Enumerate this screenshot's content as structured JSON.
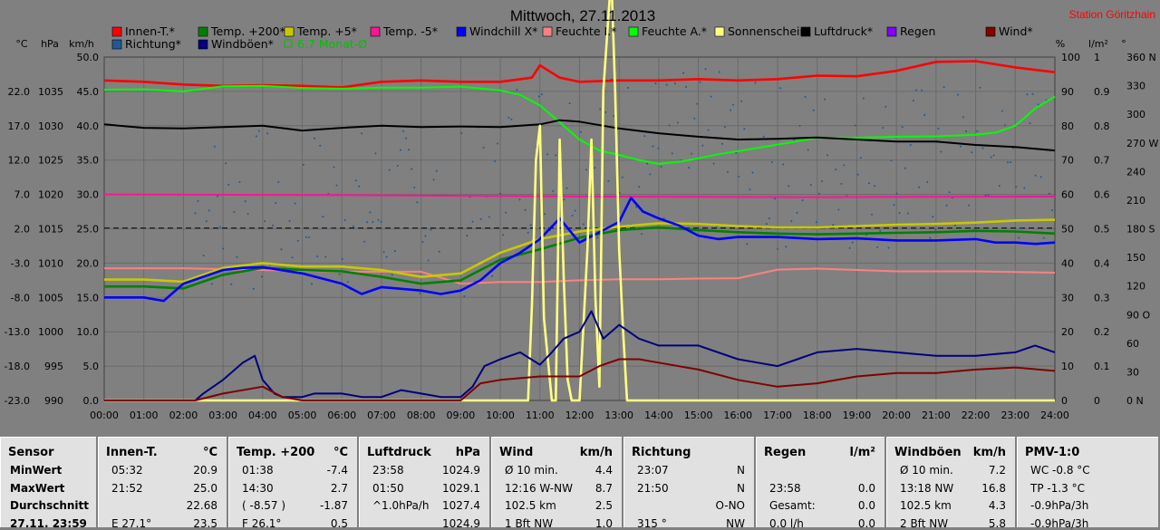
{
  "header": {
    "title": "Mittwoch, 27.11.2013",
    "station": "Station Göritzhain"
  },
  "legend": [
    {
      "label": "Innen-T.*",
      "color": "#ff0000"
    },
    {
      "label": "Temp. +200*",
      "color": "#008000"
    },
    {
      "label": "Temp. +5*",
      "color": "#c8c800"
    },
    {
      "label": "Temp. -5*",
      "color": "#ff1493"
    },
    {
      "label": "Windchill X*",
      "color": "#0000ff"
    },
    {
      "label": "Feuchte I.*",
      "color": "#ff8080"
    },
    {
      "label": "Feuchte A.*",
      "color": "#00ff00"
    },
    {
      "label": "Sonnenschein",
      "color": "#ffff80"
    },
    {
      "label": "Luftdruck*",
      "color": "#000000"
    },
    {
      "label": "Regen",
      "color": "#8000ff"
    },
    {
      "label": "Wind*",
      "color": "#800000"
    },
    {
      "label": "Richtung*",
      "color": "#1e5a96"
    },
    {
      "label": "Windböen*",
      "color": "#000080"
    },
    {
      "label": "6.7 Monat-Ø",
      "color": "#00c000"
    }
  ],
  "axes": {
    "units_left": [
      "°C",
      "hPa",
      "km/h"
    ],
    "units_right": [
      "%",
      "l/m²",
      "°"
    ],
    "temp_ticks": [
      "22.0",
      "17.0",
      "12.0",
      "7.0",
      "2.0",
      "-3.0",
      "-8.0",
      "-13.0",
      "-18.0",
      "-23.0"
    ],
    "hpa_ticks": [
      "1035",
      "1030",
      "1025",
      "1020",
      "1015",
      "1010",
      "1005",
      "1000",
      "995",
      "990"
    ],
    "kmh_ticks": [
      "50.0",
      "45.0",
      "40.0",
      "35.0",
      "30.0",
      "25.0",
      "20.0",
      "15.0",
      "10.0",
      "5.0",
      "0.0"
    ],
    "pct_ticks": [
      "100",
      "90",
      "80",
      "70",
      "60",
      "50",
      "40",
      "30",
      "20",
      "10",
      "0"
    ],
    "rain_ticks": [
      "1",
      "0.9",
      "0.8",
      "0.7",
      "0.6",
      "0.5",
      "0.4",
      "0.3",
      "0.2",
      "0.1",
      "0"
    ],
    "deg_ticks": [
      "360 N",
      "330",
      "300",
      "270 W",
      "240",
      "210",
      "180 S",
      "150",
      "120",
      "90 O",
      "60",
      "30",
      "0 N"
    ],
    "time_ticks": [
      "00:00",
      "01:00",
      "02:00",
      "03:00",
      "04:00",
      "05:00",
      "06:00",
      "07:00",
      "08:00",
      "09:00",
      "10:00",
      "11:00",
      "12:00",
      "13:00",
      "14:00",
      "15:00",
      "16:00",
      "17:00",
      "18:00",
      "19:00",
      "20:00",
      "21:00",
      "22:00",
      "23:00",
      "24:00"
    ]
  },
  "chart_data": {
    "type": "line",
    "title": "Mittwoch, 27.11.2013",
    "x_unit": "hour",
    "xlim": [
      0,
      24
    ],
    "ylim_kmh": [
      0,
      50
    ],
    "grid": true,
    "series": [
      {
        "name": "Innen-T.*",
        "scale": "kmh",
        "color": "#ff0000",
        "x": [
          0,
          1,
          2,
          3,
          4,
          5,
          6,
          7,
          8,
          9,
          10,
          10.8,
          11,
          11.5,
          12,
          13,
          14,
          15,
          16,
          17,
          18,
          19,
          20,
          21,
          22,
          23,
          24
        ],
        "values": [
          46.6,
          46.4,
          46.0,
          45.8,
          45.9,
          45.8,
          45.6,
          46.4,
          46.6,
          46.4,
          46.4,
          47.0,
          48.8,
          47.0,
          46.4,
          46.6,
          46.6,
          46.8,
          46.6,
          46.8,
          47.3,
          47.2,
          48.0,
          49.3,
          49.4,
          48.5,
          47.8
        ]
      },
      {
        "name": "Feuchte A.*",
        "scale": "pct",
        "color": "#00ff00",
        "x": [
          0,
          1,
          2,
          3,
          4,
          5,
          6,
          7,
          8,
          9,
          10,
          10.5,
          11,
          11.5,
          12,
          12.5,
          13,
          13.5,
          14,
          14.5,
          15,
          15.5,
          16,
          17,
          18,
          19,
          20,
          21,
          22,
          22.5,
          23,
          23.5,
          24
        ],
        "values": [
          90.5,
          90.6,
          90,
          91.5,
          91.6,
          91.0,
          90.8,
          91.1,
          91.1,
          91.4,
          90.3,
          89.0,
          85.9,
          81.0,
          76.0,
          72.8,
          71.5,
          70.0,
          68.9,
          69.5,
          70.5,
          71.7,
          72.6,
          74.5,
          76.5,
          76.5,
          76.8,
          76.9,
          77.4,
          78.0,
          80.0,
          85.0,
          88.5
        ]
      },
      {
        "name": "Luftdruck*",
        "scale": "kmh",
        "color": "#000000",
        "x": [
          0,
          1,
          2,
          3,
          4,
          5,
          6,
          7,
          8,
          9,
          10,
          11,
          11.5,
          12,
          13,
          14,
          15,
          16,
          17,
          18,
          19,
          20,
          21,
          22,
          23,
          24
        ],
        "values": [
          40.2,
          39.7,
          39.6,
          39.8,
          40.0,
          39.3,
          39.7,
          40.0,
          39.8,
          39.9,
          39.8,
          40.2,
          40.8,
          40.6,
          39.6,
          38.9,
          38.4,
          38.0,
          38.1,
          38.3,
          38.0,
          37.7,
          37.7,
          37.2,
          36.9,
          36.4
        ]
      },
      {
        "name": "Temp. -5*",
        "scale": "kmh",
        "color": "#ff1493",
        "x": [
          0,
          6,
          12,
          18,
          24
        ],
        "values": [
          30.0,
          29.9,
          29.7,
          29.6,
          29.7
        ]
      },
      {
        "name": "Feuchte I.*",
        "scale": "pct",
        "color": "#ff8080",
        "x": [
          0,
          2,
          4,
          6,
          8,
          9,
          10,
          11,
          12,
          13,
          14,
          15,
          16,
          17,
          18,
          20,
          22,
          24
        ],
        "values": [
          38.5,
          38.5,
          38.0,
          37.5,
          37.5,
          34.0,
          34.5,
          34.5,
          35.0,
          35.3,
          35.3,
          35.5,
          35.6,
          38.1,
          38.4,
          37.6,
          37.6,
          37.2
        ]
      },
      {
        "name": "Temp. +5*",
        "scale": "kmh",
        "color": "#c8c800",
        "x": [
          0,
          1,
          2,
          3,
          4,
          5,
          6,
          7,
          8,
          9,
          10,
          11,
          12,
          13,
          14,
          15,
          16,
          17,
          18,
          19,
          20,
          21,
          22,
          23,
          24
        ],
        "values": [
          17.6,
          17.6,
          17.3,
          19.3,
          20.0,
          19.5,
          19.5,
          19.0,
          18.0,
          18.5,
          21.5,
          23.5,
          24.6,
          25.3,
          25.8,
          25.7,
          25.4,
          25.2,
          25.2,
          25.4,
          25.6,
          25.7,
          25.9,
          26.2,
          26.3
        ]
      },
      {
        "name": "Temp. +200*",
        "scale": "kmh",
        "color": "#008000",
        "x": [
          0,
          1,
          2,
          3,
          4,
          5,
          6,
          7,
          8,
          9,
          10,
          11,
          12,
          13,
          14,
          15,
          16,
          17,
          18,
          19,
          20,
          21,
          22,
          23,
          24
        ],
        "values": [
          16.6,
          16.6,
          16.3,
          18.3,
          19.3,
          19.0,
          18.8,
          18.0,
          17.0,
          17.5,
          20.5,
          22.0,
          23.7,
          24.8,
          25.2,
          24.8,
          24.5,
          24.3,
          24.2,
          24.3,
          24.4,
          24.5,
          24.7,
          24.6,
          24.3
        ]
      },
      {
        "name": "Windchill X*",
        "scale": "kmh",
        "color": "#0000ff",
        "x": [
          0,
          1,
          1.5,
          2,
          3,
          3.5,
          4,
          5,
          6,
          6.5,
          7,
          8,
          8.5,
          9,
          9.5,
          10,
          10.5,
          11,
          11.5,
          12,
          12.5,
          13,
          13.3,
          13.6,
          14,
          14.5,
          15,
          15.5,
          16,
          17,
          18,
          19,
          20,
          21,
          22,
          22.5,
          23,
          23.5,
          24
        ],
        "values": [
          15.0,
          15.0,
          14.5,
          17.0,
          19.0,
          19.3,
          19.4,
          18.5,
          17.0,
          15.5,
          16.5,
          16.0,
          15.5,
          16.0,
          17.5,
          20.0,
          21.5,
          23.5,
          26.5,
          23.0,
          24.5,
          26.0,
          29.5,
          27.5,
          26.5,
          25.5,
          24.0,
          23.5,
          23.8,
          23.8,
          23.5,
          23.6,
          23.3,
          23.3,
          23.5,
          23.0,
          23.0,
          22.8,
          23.0
        ]
      },
      {
        "name": "Sonnenschein",
        "scale": "kmh",
        "color": "#ffff80",
        "x": [
          0,
          10.7,
          10.8,
          10.9,
          11.0,
          11.1,
          11.3,
          11.4,
          11.5,
          11.6,
          11.7,
          11.8,
          12.0,
          12.2,
          12.3,
          12.4,
          12.5,
          12.6,
          12.8,
          12.9,
          13.0,
          13.1,
          13.2,
          13.3,
          13.6,
          24
        ],
        "values": [
          0,
          0,
          14,
          35,
          40,
          12,
          0,
          0,
          38,
          18,
          3,
          0,
          0,
          22,
          38,
          15,
          2,
          45,
          62,
          45,
          22,
          10,
          0,
          0,
          0,
          0
        ]
      },
      {
        "name": "Windböen*",
        "scale": "kmh",
        "color": "#000080",
        "x": [
          0,
          2.3,
          2.5,
          3,
          3.5,
          3.8,
          4,
          4.3,
          4.5,
          5,
          5.3,
          6,
          6.5,
          7,
          7.5,
          8,
          8.5,
          9,
          9.3,
          9.6,
          10,
          10.5,
          11,
          11.3,
          11.6,
          12,
          12.3,
          12.6,
          13,
          13.5,
          14,
          15,
          16,
          16.5,
          17,
          17.5,
          18,
          19,
          20,
          21,
          22,
          23,
          23.5,
          24
        ],
        "values": [
          0,
          0,
          1,
          3,
          5.5,
          6.5,
          3,
          1,
          0.5,
          0.5,
          1,
          1,
          0.5,
          0.5,
          1.5,
          1,
          0.5,
          0.5,
          2,
          5,
          6,
          7,
          5.2,
          7,
          9,
          10,
          13,
          9,
          11,
          9,
          8,
          8,
          6,
          5.5,
          5,
          6,
          7,
          7.5,
          7,
          6.5,
          6.5,
          7,
          8,
          7
        ]
      },
      {
        "name": "Wind*",
        "scale": "kmh",
        "color": "#800000",
        "x": [
          0,
          2.3,
          3,
          4,
          4.5,
          5,
          9,
          9.5,
          10,
          11,
          11.5,
          12,
          12.5,
          13,
          13.5,
          14,
          15,
          16,
          17,
          18,
          19,
          20,
          21,
          22,
          23,
          24
        ],
        "values": [
          0,
          0,
          1,
          2,
          0.5,
          0,
          0,
          2.5,
          3,
          3.5,
          3.5,
          3.5,
          5,
          6,
          6,
          5.5,
          4.5,
          3,
          2,
          2.5,
          3.5,
          4,
          4,
          4.5,
          4.8,
          4.3
        ]
      }
    ],
    "reference_line": {
      "name": "6.7 Monat-Ø",
      "scale": "temp",
      "value": 2.1
    }
  },
  "panels": [
    {
      "header": [
        "Sensor",
        ""
      ],
      "rows": [
        [
          "MinWert",
          ""
        ],
        [
          "MaxWert",
          ""
        ],
        [
          "Durchschnitt",
          ""
        ],
        [
          "27.11. 23:59",
          ""
        ]
      ]
    },
    {
      "header": [
        "Innen-T.",
        "°C"
      ],
      "rows": [
        [
          "05:32",
          "20.9"
        ],
        [
          "21:52",
          "25.0"
        ],
        [
          "",
          "22.68"
        ],
        [
          "E 27.1°",
          "23.5"
        ]
      ]
    },
    {
      "header": [
        "Temp. +200",
        "°C"
      ],
      "rows": [
        [
          "01:38",
          "-7.4"
        ],
        [
          "14:30",
          "2.7"
        ],
        [
          "( -8.57 )",
          "-1.87"
        ],
        [
          "F 26.1°",
          "0.5"
        ]
      ]
    },
    {
      "header": [
        "Luftdruck",
        "hPa"
      ],
      "rows": [
        [
          "23:58",
          "1024.9"
        ],
        [
          "01:50",
          "1029.1"
        ],
        [
          "^1.0hPa/h",
          "1027.4"
        ],
        [
          "",
          "1024.9"
        ]
      ]
    },
    {
      "header": [
        "Wind",
        "km/h"
      ],
      "rows": [
        [
          "Ø 10 min.",
          "4.4"
        ],
        [
          "12:16   W-NW",
          "8.7"
        ],
        [
          "102.5 km",
          "2.5"
        ],
        [
          "1 Bft NW",
          "1.0"
        ]
      ]
    },
    {
      "header": [
        "Richtung",
        ""
      ],
      "rows": [
        [
          "23:07",
          "N"
        ],
        [
          "21:50",
          "N"
        ],
        [
          "",
          "O-NO"
        ],
        [
          "315 °",
          "NW"
        ]
      ]
    },
    {
      "header": [
        "Regen",
        "l/m²"
      ],
      "rows": [
        [
          "",
          ""
        ],
        [
          "23:58",
          "0.0"
        ],
        [
          "Gesamt:",
          "0.0"
        ],
        [
          "0.0 l/h",
          "0.0"
        ]
      ]
    },
    {
      "header": [
        "Windböen",
        "km/h"
      ],
      "rows": [
        [
          "Ø 10 min.",
          "7.2"
        ],
        [
          "13:18   NW",
          "16.8"
        ],
        [
          "102.5 km",
          "4.3"
        ],
        [
          "2 Bft NW",
          "5.8"
        ]
      ]
    },
    {
      "header": [
        "PMV-1:0",
        ""
      ],
      "rows": [
        [
          "WC -0.8 °C",
          ""
        ],
        [
          "TP -1.3 °C",
          ""
        ],
        [
          "-0.9hPa/3h",
          ""
        ],
        [
          "-0.9hPa/3h",
          ""
        ]
      ]
    }
  ]
}
